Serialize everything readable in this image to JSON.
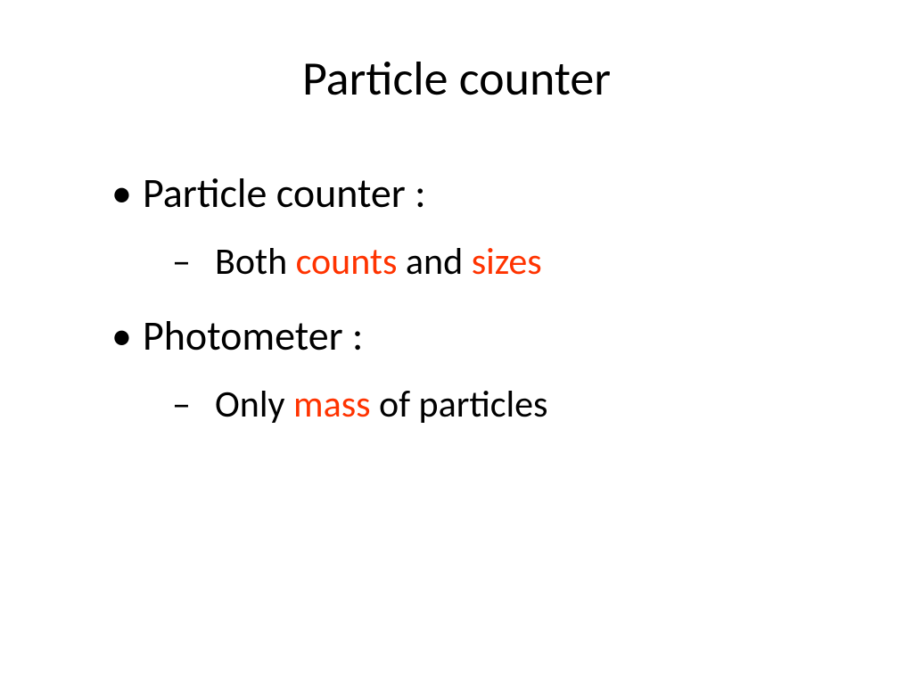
{
  "slide": {
    "title": "Particle counter",
    "title_fontsize": 54,
    "background_color": "#ffffff",
    "text_color": "#000000",
    "highlight_color": "#ff3300",
    "bullets": [
      {
        "level": 1,
        "marker": "•",
        "text": "Particle counter :"
      },
      {
        "level": 2,
        "marker": "–",
        "runs": [
          {
            "text": "Both ",
            "highlight": false
          },
          {
            "text": "counts",
            "highlight": true
          },
          {
            "text": " and ",
            "highlight": false
          },
          {
            "text": "sizes",
            "highlight": true
          }
        ]
      },
      {
        "level": 1,
        "marker": "•",
        "text": "Photometer :"
      },
      {
        "level": 2,
        "marker": "–",
        "runs": [
          {
            "text": "Only ",
            "highlight": false
          },
          {
            "text": "mass",
            "highlight": true
          },
          {
            "text": " of particles",
            "highlight": false
          }
        ]
      }
    ],
    "l1_fontsize": 46,
    "l2_fontsize": 42
  }
}
